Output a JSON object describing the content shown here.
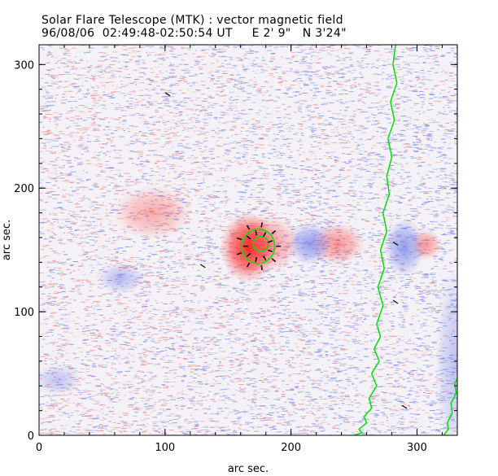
{
  "chart_data": {
    "type": "heatmap",
    "title": "Solar Flare Telescope (MTK) : vector magnetic field",
    "subtitle": "96/08/06  02:49:48-02:50:54 UT     E 2' 9\"   N 3'24\"",
    "xlabel": "arc sec.",
    "ylabel": "arc sec.",
    "xlim": [
      0,
      332
    ],
    "ylim": [
      0,
      316
    ],
    "xticks": [
      0,
      100,
      200,
      300
    ],
    "yticks": [
      0,
      100,
      200,
      300
    ],
    "colors": {
      "positive": "#ff3030",
      "negative": "#3a4fe0",
      "contour": "#00e000",
      "vectors": "#000000"
    },
    "polarity_regions": [
      {
        "polarity": "positive",
        "x": 166,
        "y": 152,
        "rx": 14,
        "ry": 18,
        "strength": 1.0
      },
      {
        "polarity": "positive",
        "x": 182,
        "y": 155,
        "rx": 16,
        "ry": 15,
        "strength": 0.45
      },
      {
        "polarity": "positive",
        "x": 237,
        "y": 155,
        "rx": 14,
        "ry": 11,
        "strength": 0.45
      },
      {
        "polarity": "positive",
        "x": 307,
        "y": 154,
        "rx": 8,
        "ry": 8,
        "strength": 0.45
      },
      {
        "polarity": "positive",
        "x": 90,
        "y": 180,
        "rx": 20,
        "ry": 14,
        "strength": 0.35
      },
      {
        "polarity": "negative",
        "x": 215,
        "y": 155,
        "rx": 11,
        "ry": 11,
        "strength": 0.55
      },
      {
        "polarity": "negative",
        "x": 290,
        "y": 152,
        "rx": 10,
        "ry": 15,
        "strength": 0.55
      },
      {
        "polarity": "negative",
        "x": 65,
        "y": 127,
        "rx": 12,
        "ry": 8,
        "strength": 0.35
      },
      {
        "polarity": "negative",
        "x": 15,
        "y": 45,
        "rx": 12,
        "ry": 8,
        "strength": 0.3
      },
      {
        "polarity": "negative",
        "x": 330,
        "y": 60,
        "rx": 10,
        "ry": 50,
        "strength": 0.3
      }
    ],
    "contours": [
      {
        "x": [
          283,
          281,
          284,
          279,
          282,
          277,
          280,
          276,
          278,
          273,
          276,
          271,
          274,
          269,
          273,
          268,
          271,
          266,
          270,
          264,
          268,
          262,
          264,
          258,
          260,
          254,
          256,
          250
        ],
        "y": [
          316,
          300,
          285,
          270,
          255,
          240,
          225,
          210,
          195,
          180,
          165,
          150,
          135,
          120,
          105,
          90,
          80,
          70,
          60,
          50,
          40,
          30,
          22,
          15,
          10,
          5,
          2,
          0
        ]
      },
      {
        "x": [
          335,
          333,
          334,
          330,
          331,
          327,
          328,
          324,
          325,
          321
        ],
        "y": [
          70,
          60,
          50,
          42,
          34,
          26,
          18,
          10,
          5,
          0
        ]
      },
      {
        "ellipse": true,
        "cx": 174,
        "cy": 153,
        "rx": 13,
        "ry": 14
      },
      {
        "ellipse": true,
        "cx": 176,
        "cy": 155,
        "rx": 6,
        "ry": 6
      }
    ]
  }
}
